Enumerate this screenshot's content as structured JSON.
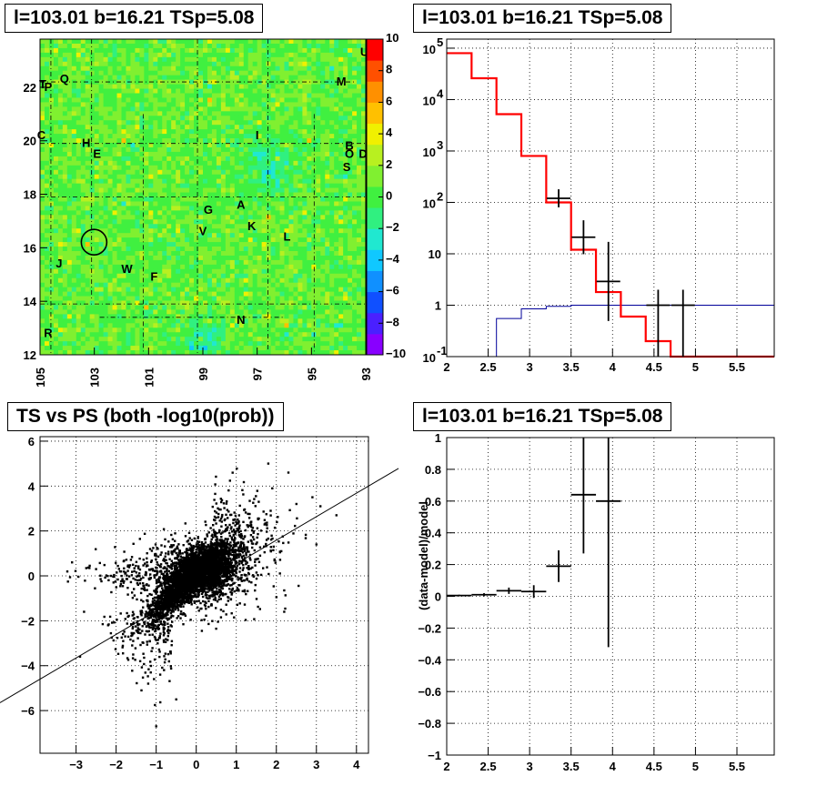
{
  "panels": {
    "tl_title": "l=103.01 b=16.21 TSp=5.08",
    "tr_title": "l=103.01 b=16.21 TSp=5.08",
    "bl_title": "TS vs PS (both -log10(prob))",
    "br_title": "l=103.01 b=16.21 TSp=5.08"
  },
  "chart_data": [
    {
      "type": "heatmap",
      "title": "l=103.01 b=16.21 TSp=5.08",
      "xlim": [
        105,
        93
      ],
      "ylim": [
        12,
        23.8
      ],
      "x_ticks": [
        "105",
        "103",
        "101",
        "99",
        "97",
        "95",
        "93"
      ],
      "y_ticks": [
        "12",
        "14",
        "16",
        "18",
        "20",
        "22"
      ],
      "colorbar": {
        "range": [
          -10,
          10
        ],
        "ticks": [
          "10",
          "8",
          "6",
          "4",
          "2",
          "0",
          "−2",
          "−4",
          "−6",
          "−8",
          "−10"
        ]
      },
      "source_labels": [
        {
          "label": "T",
          "l": 104.9,
          "b": 22.1
        },
        {
          "label": "P",
          "l": 104.7,
          "b": 22.0
        },
        {
          "label": "Q",
          "l": 104.1,
          "b": 22.3
        },
        {
          "label": "C",
          "l": 104.95,
          "b": 20.2
        },
        {
          "label": "H",
          "l": 103.3,
          "b": 19.9
        },
        {
          "label": "E",
          "l": 102.9,
          "b": 19.5
        },
        {
          "label": "I",
          "l": 97.0,
          "b": 20.2
        },
        {
          "label": "M",
          "l": 93.9,
          "b": 22.2
        },
        {
          "label": "U",
          "l": 93.05,
          "b": 23.3
        },
        {
          "label": "B",
          "l": 93.6,
          "b": 19.8
        },
        {
          "label": "O",
          "l": 93.6,
          "b": 19.5
        },
        {
          "label": "D",
          "l": 93.1,
          "b": 19.5
        },
        {
          "label": "S",
          "l": 93.7,
          "b": 19.0
        },
        {
          "label": "A",
          "l": 97.6,
          "b": 17.6
        },
        {
          "label": "G",
          "l": 98.8,
          "b": 17.4
        },
        {
          "label": "K",
          "l": 97.2,
          "b": 16.8
        },
        {
          "label": "V",
          "l": 99.0,
          "b": 16.6
        },
        {
          "label": "L",
          "l": 95.9,
          "b": 16.4
        },
        {
          "label": "J",
          "l": 104.3,
          "b": 15.4
        },
        {
          "label": "W",
          "l": 101.8,
          "b": 15.2
        },
        {
          "label": "F",
          "l": 100.8,
          "b": 14.9
        },
        {
          "label": "N",
          "l": 97.6,
          "b": 13.3
        },
        {
          "label": "R",
          "l": 104.7,
          "b": 12.8
        }
      ],
      "circle_center": {
        "l": 103.01,
        "b": 16.21
      }
    },
    {
      "type": "line",
      "title": "l=103.01 b=16.21 TSp=5.08",
      "log_y": true,
      "xlim": [
        2,
        5.95
      ],
      "ylim": [
        0.1,
        150000
      ],
      "x_ticks": [
        "2",
        "2.5",
        "3",
        "3.5",
        "4",
        "4.5",
        "5",
        "5.5"
      ],
      "y_ticks": [
        "10^-1",
        "1",
        "10",
        "10^2",
        "10^3",
        "10^4",
        "10^5"
      ],
      "bin_edges": [
        2.0,
        2.3,
        2.6,
        2.9,
        3.2,
        3.5,
        3.8,
        4.1,
        4.4,
        4.7,
        5.0,
        5.3,
        5.6,
        5.95
      ],
      "series": [
        {
          "color": "#ff0000",
          "values": [
            80000,
            26000,
            5200,
            800,
            100,
            12,
            1.8,
            0.6,
            0.2,
            0.1,
            0.1,
            0.1,
            0.1
          ]
        },
        {
          "color": "#000099",
          "values": [
            0.05,
            0.05,
            0.55,
            0.85,
            0.95,
            1.0,
            1.0,
            1.0,
            1.0,
            1.0,
            1.0,
            1.0,
            1.0
          ]
        },
        {
          "color": "#000000",
          "points": [
            [
              3.35,
              120
            ],
            [
              3.65,
              21
            ],
            [
              3.95,
              2.9
            ],
            [
              4.55,
              1.0
            ],
            [
              4.85,
              1.0
            ]
          ]
        }
      ]
    },
    {
      "type": "scatter",
      "title": "TS vs PS (both -log10(prob))",
      "xlim": [
        -3.9,
        4.3
      ],
      "ylim": [
        -7.9,
        6.2
      ],
      "x_ticks": [
        "−3",
        "−2",
        "−1",
        "0",
        "1",
        "2",
        "3",
        "4"
      ],
      "y_ticks": [
        "−6",
        "−4",
        "−2",
        "0",
        "2",
        "4",
        "6"
      ],
      "fit_line": {
        "x": [
          -3.9,
          4.3
        ],
        "y": [
          -4.6,
          4.0
        ]
      },
      "outliers": [
        [
          -3.1,
          0.6
        ],
        [
          -2.9,
          -3.6
        ],
        [
          -2.2,
          -2.2
        ],
        [
          -1.9,
          0.2
        ],
        [
          -1.2,
          -4.8
        ],
        [
          -1.0,
          -6.7
        ],
        [
          -0.5,
          -5.5
        ],
        [
          1.8,
          5.0
        ],
        [
          2.3,
          4.6
        ],
        [
          2.9,
          3.5
        ],
        [
          3.0,
          1.4
        ],
        [
          3.1,
          3.1
        ],
        [
          3.5,
          2.7
        ],
        [
          -2.8,
          -1.6
        ],
        [
          -1.6,
          -3.1
        ],
        [
          2.5,
          3.2
        ],
        [
          -0.9,
          -4.4
        ],
        [
          -2.5,
          0.3
        ],
        [
          1.9,
          3.9
        ],
        [
          -1.4,
          -3.8
        ]
      ]
    },
    {
      "type": "scatter",
      "title": "l=103.01 b=16.21 TSp=5.08",
      "xlim": [
        2,
        5.95
      ],
      "ylim": [
        -1,
        1
      ],
      "ylabel": "(data-model)/model",
      "x_ticks": [
        "2",
        "2.5",
        "3",
        "3.5",
        "4",
        "4.5",
        "5",
        "5.5"
      ],
      "y_ticks": [
        "−1",
        "−0.8",
        "−0.6",
        "−0.4",
        "−0.2",
        "0",
        "0.2",
        "0.4",
        "0.6",
        "0.8",
        "1"
      ],
      "points": [
        [
          2.15,
          0.005
        ],
        [
          2.45,
          0.01
        ],
        [
          2.75,
          0.035
        ],
        [
          3.05,
          0.03
        ],
        [
          3.35,
          0.19
        ],
        [
          3.65,
          0.64
        ],
        [
          3.95,
          0.6
        ]
      ],
      "y_err": [
        0.005,
        0.01,
        0.02,
        0.04,
        0.1,
        0.37,
        0.92
      ]
    }
  ]
}
